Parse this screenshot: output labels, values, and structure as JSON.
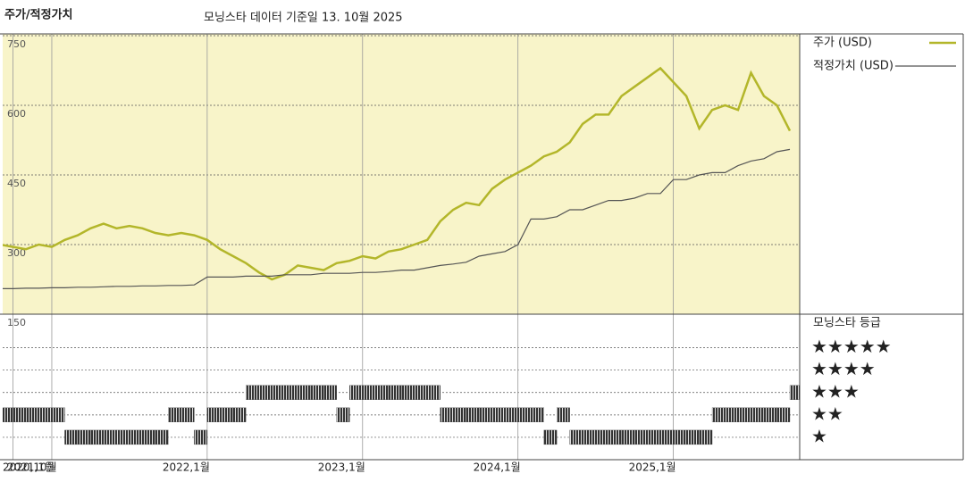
{
  "chart_data": [
    {
      "type": "line",
      "title": "주가/적정가치",
      "subtitle": "모닝스타 데이터 기준일 13. 10월 2025",
      "x": [
        "2020-09",
        "2020-10",
        "2020-11",
        "2020-12",
        "2021-01",
        "2021-02",
        "2021-03",
        "2021-04",
        "2021-05",
        "2021-06",
        "2021-07",
        "2021-08",
        "2021-09",
        "2021-10",
        "2021-11",
        "2021-12",
        "2022-01",
        "2022-02",
        "2022-03",
        "2022-04",
        "2022-05",
        "2022-06",
        "2022-07",
        "2022-08",
        "2022-09",
        "2022-10",
        "2022-11",
        "2022-12",
        "2023-01",
        "2023-02",
        "2023-03",
        "2023-04",
        "2023-05",
        "2023-06",
        "2023-07",
        "2023-08",
        "2023-09",
        "2023-10",
        "2023-11",
        "2023-12",
        "2024-01",
        "2024-02",
        "2024-03",
        "2024-04",
        "2024-05",
        "2024-06",
        "2024-07",
        "2024-08",
        "2024-09",
        "2024-10",
        "2024-11",
        "2024-12",
        "2025-01",
        "2025-02",
        "2025-03",
        "2025-04",
        "2025-05",
        "2025-06",
        "2025-07",
        "2025-08",
        "2025-09",
        "2025-10"
      ],
      "series": [
        {
          "name": "주가 (USD)",
          "color": "#b3b62a",
          "values": [
            300,
            295,
            290,
            300,
            295,
            310,
            320,
            335,
            345,
            335,
            340,
            335,
            325,
            320,
            325,
            320,
            310,
            290,
            275,
            260,
            240,
            225,
            235,
            255,
            250,
            245,
            260,
            265,
            275,
            270,
            285,
            290,
            300,
            310,
            350,
            375,
            390,
            385,
            420,
            440,
            455,
            470,
            490,
            500,
            520,
            560,
            580,
            580,
            620,
            640,
            660,
            680,
            650,
            620,
            550,
            590,
            600,
            590,
            670,
            620,
            600,
            545
          ]
        },
        {
          "name": "적정가치 (USD)",
          "color": "#555555",
          "values": [
            205,
            205,
            206,
            206,
            207,
            207,
            208,
            208,
            209,
            210,
            210,
            211,
            211,
            212,
            212,
            213,
            230,
            230,
            230,
            232,
            232,
            232,
            235,
            235,
            235,
            238,
            238,
            238,
            240,
            240,
            242,
            245,
            245,
            250,
            255,
            258,
            262,
            275,
            280,
            285,
            300,
            355,
            355,
            360,
            375,
            375,
            385,
            395,
            395,
            400,
            410,
            410,
            440,
            440,
            450,
            455,
            455,
            470,
            480,
            485,
            500,
            505
          ]
        }
      ],
      "xlim": [
        "2020-09",
        "2025-10"
      ],
      "ylim": [
        150,
        750
      ],
      "yticks": [
        150,
        300,
        450,
        600,
        750
      ],
      "grid": true
    },
    {
      "type": "timeline",
      "title": "모닝스타 등급",
      "x": [
        "2020-09",
        "2020-10",
        "2020-11",
        "2020-12",
        "2021-01",
        "2021-02",
        "2021-03",
        "2021-04",
        "2021-05",
        "2021-06",
        "2021-07",
        "2021-08",
        "2021-09",
        "2021-10",
        "2021-11",
        "2021-12",
        "2022-01",
        "2022-02",
        "2022-03",
        "2022-04",
        "2022-05",
        "2022-06",
        "2022-07",
        "2022-08",
        "2022-09",
        "2022-10",
        "2022-11",
        "2022-12",
        "2023-01",
        "2023-02",
        "2023-03",
        "2023-04",
        "2023-05",
        "2023-06",
        "2023-07",
        "2023-08",
        "2023-09",
        "2023-10",
        "2023-11",
        "2023-12",
        "2024-01",
        "2024-02",
        "2024-03",
        "2024-04",
        "2024-05",
        "2024-06",
        "2024-07",
        "2024-08",
        "2024-09",
        "2024-10",
        "2024-11",
        "2024-12",
        "2025-01",
        "2025-02",
        "2025-03",
        "2025-04",
        "2025-05",
        "2025-06",
        "2025-07",
        "2025-08",
        "2025-09",
        "2025-10"
      ],
      "values": [
        2,
        2,
        2,
        2,
        2,
        1,
        1,
        1,
        1,
        1,
        1,
        1,
        1,
        2,
        2,
        1,
        2,
        2,
        2,
        3,
        3,
        3,
        3,
        3,
        3,
        3,
        2,
        3,
        3,
        3,
        3,
        3,
        3,
        3,
        2,
        2,
        2,
        2,
        2,
        2,
        2,
        2,
        1,
        2,
        1,
        1,
        1,
        1,
        1,
        1,
        1,
        1,
        1,
        1,
        1,
        2,
        2,
        2,
        2,
        2,
        2,
        3
      ],
      "color": "#333333",
      "xlim": [
        "2020-09",
        "2025-10"
      ],
      "xticks": [
        {
          "value": "2020-10",
          "label": "2020,10월"
        },
        {
          "value": "2021-01",
          "label": "2021,1월"
        },
        {
          "value": "2022-01",
          "label": "2022,1월"
        },
        {
          "value": "2023-01",
          "label": "2023,1월"
        },
        {
          "value": "2024-01",
          "label": "2024,1월"
        },
        {
          "value": "2025-01",
          "label": "2025,1월"
        }
      ],
      "ylim": [
        0,
        6.5
      ],
      "yticks": [
        {
          "value": 1,
          "label": "★"
        },
        {
          "value": 2,
          "label": "★★"
        },
        {
          "value": 3,
          "label": "★★★"
        },
        {
          "value": 4,
          "label": "★★★★"
        },
        {
          "value": 5,
          "label": "★★★★★"
        }
      ]
    }
  ]
}
